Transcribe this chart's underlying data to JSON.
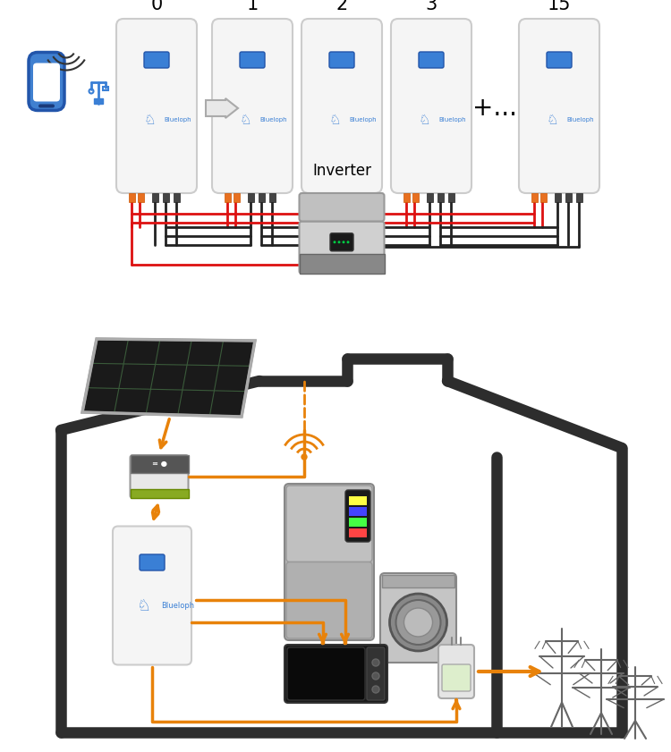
{
  "bg_color": "#ffffff",
  "battery_labels": [
    "0",
    "1",
    "2",
    "3",
    "15"
  ],
  "plus_dots": "+...",
  "inverter_label": "Inverter",
  "orange": "#e8820a",
  "red": "#dd1111",
  "black": "#222222",
  "wall_color": "#2d2d2d",
  "wall_lw": 9,
  "bat_fc": "#f4f4f4",
  "bat_ec": "#cccccc",
  "blue": "#3a7fd5",
  "gray_inv": "#b0b0b0",
  "gray_dark": "#707070"
}
